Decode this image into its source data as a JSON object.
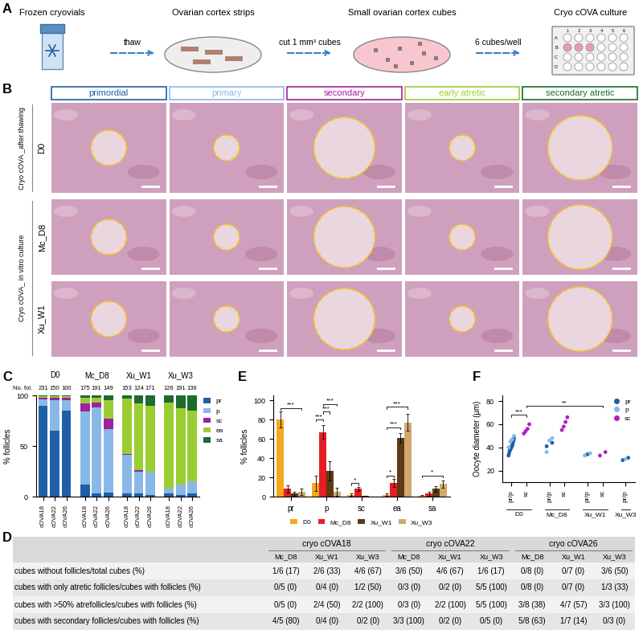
{
  "panel_labels": [
    "A",
    "B",
    "C",
    "D",
    "E",
    "F"
  ],
  "schematic": {
    "steps": [
      "Frozen cryovials",
      "Ovarian cortex strips",
      "Small ovarian cortex cubes",
      "Cryo cOVA culture"
    ],
    "arrows": [
      "thaw",
      "cut 1 mm³ cubes",
      "6 cubes/well"
    ],
    "plate_rows": [
      "A",
      "B",
      "C",
      "D"
    ],
    "plate_columns": [
      "1",
      "2",
      "3",
      "4",
      "5",
      "6"
    ]
  },
  "micrographs": {
    "columns": [
      {
        "name": "primordial",
        "color": "#1f5fa8"
      },
      {
        "name": "primary",
        "color": "#8ab8e6"
      },
      {
        "name": "secondary",
        "color": "#a020a0"
      },
      {
        "name": "early atretic",
        "color": "#9acd32"
      },
      {
        "name": "secondary atretic",
        "color": "#1e6b2e"
      }
    ],
    "groups": [
      {
        "label": "Cryo cOVA _after thawing",
        "rows": [
          "D0"
        ]
      },
      {
        "label": "Cryo cOVA_ in vitro culture",
        "rows": [
          "Mc_D8",
          "Xu_W1"
        ]
      }
    ]
  },
  "chart_data": [
    {
      "type": "bar",
      "panel": "C",
      "stacked": true,
      "y_label": "% follicles",
      "ylim": [
        0,
        100
      ],
      "yticks": [
        0,
        50,
        100
      ],
      "legend": "upper left",
      "count_label": "No. fol.",
      "series": [
        {
          "name": "pr",
          "color": "#1f5fa8"
        },
        {
          "name": "p",
          "color": "#8ab8e6"
        },
        {
          "name": "sc",
          "color": "#a020a0"
        },
        {
          "name": "ea",
          "color": "#9acd32"
        },
        {
          "name": "sa",
          "color": "#1e6b2e"
        }
      ],
      "groups": [
        {
          "name": "D0",
          "bars": [
            {
              "name": "cOVA18",
              "count": 231,
              "values": [
                90,
                6,
                2,
                1,
                1
              ]
            },
            {
              "name": "cOVA22",
              "count": 150,
              "values": [
                65,
                30,
                3,
                1,
                1
              ]
            },
            {
              "name": "cOVA26",
              "count": 100,
              "values": [
                85,
                10,
                3,
                1,
                1
              ]
            }
          ]
        },
        {
          "name": "Mc_D8",
          "bars": [
            {
              "name": "cOVA18",
              "count": 175,
              "values": [
                12,
                72,
                8,
                6,
                2
              ]
            },
            {
              "name": "cOVA22",
              "count": 191,
              "values": [
                3,
                85,
                5,
                5,
                2
              ]
            },
            {
              "name": "cOVA26",
              "count": 149,
              "values": [
                4,
                63,
                10,
                18,
                5
              ]
            }
          ]
        },
        {
          "name": "Xu_W1",
          "bars": [
            {
              "name": "cOVA18",
              "count": 153,
              "values": [
                3,
                38,
                1,
                55,
                3
              ]
            },
            {
              "name": "cOVA22",
              "count": 124,
              "values": [
                3,
                22,
                1,
                66,
                8
              ]
            },
            {
              "name": "cOVA26",
              "count": 171,
              "values": [
                2,
                23,
                0,
                65,
                10
              ]
            }
          ]
        },
        {
          "name": "Xu_W3",
          "bars": [
            {
              "name": "cOVA18",
              "count": 126,
              "values": [
                3,
                5,
                0,
                85,
                7
              ]
            },
            {
              "name": "cOVA22",
              "count": 191,
              "values": [
                2,
                10,
                0,
                75,
                13
              ]
            },
            {
              "name": "cOVA26",
              "count": 136,
              "values": [
                3,
                12,
                0,
                70,
                15
              ]
            }
          ]
        }
      ]
    },
    {
      "type": "bar",
      "panel": "E",
      "y_label": "% follicles",
      "categories": [
        "pr",
        "p",
        "sc",
        "ea",
        "sa"
      ],
      "ylim": [
        0,
        105
      ],
      "yticks": [
        0,
        20,
        40,
        60,
        80,
        100
      ],
      "legend": "upper center",
      "series": [
        {
          "name": "D0",
          "color": "#f5a81c",
          "values": [
            80,
            14,
            2,
            2,
            1
          ],
          "errors": [
            8,
            8,
            1,
            1,
            1
          ]
        },
        {
          "name": "Mc_D8",
          "color": "#e41e26",
          "values": [
            8,
            67,
            8,
            14,
            3
          ],
          "errors": [
            4,
            7,
            2,
            4,
            2
          ]
        },
        {
          "name": "Xu_W1",
          "color": "#5c3a12",
          "values": [
            3,
            27,
            0.5,
            61,
            8
          ],
          "errors": [
            2,
            10,
            0.5,
            5,
            3
          ]
        },
        {
          "name": "Xu_W3",
          "color": "#d2a86e",
          "values": [
            5,
            5,
            0,
            77,
            13
          ],
          "errors": [
            3,
            4,
            0,
            9,
            4
          ]
        }
      ],
      "significance": [
        {
          "category": "pr",
          "from": "D0",
          "to": "Xu_W3",
          "text": "***",
          "y": 92
        },
        {
          "category": "p",
          "from": "D0",
          "to": "Mc_D8",
          "text": "***",
          "y": 80
        },
        {
          "category": "p",
          "from": "Mc_D8",
          "to": "Xu_W1",
          "text": "***",
          "y": 88
        },
        {
          "category": "p",
          "from": "Mc_D8",
          "to": "Xu_W3",
          "text": "***",
          "y": 96
        },
        {
          "category": "sc",
          "from": "D0",
          "to": "Mc_D8",
          "text": "*",
          "y": 14
        },
        {
          "category": "ea",
          "from": "D0",
          "to": "Mc_D8",
          "text": "*",
          "y": 22
        },
        {
          "category": "ea",
          "from": "D0",
          "to": "Xu_W1",
          "text": "***",
          "y": 72
        },
        {
          "category": "ea",
          "from": "D0",
          "to": "Xu_W3",
          "text": "***",
          "y": 93
        },
        {
          "category": "sa",
          "from": "D0",
          "to": "Xu_W3",
          "text": "*",
          "y": 22
        }
      ]
    },
    {
      "type": "scatter",
      "panel": "F",
      "y_label": "Oocyte diameter (μm)",
      "ylim": [
        10,
        85
      ],
      "yticks": [
        20,
        40,
        60,
        80
      ],
      "legend": "upper right",
      "marker": "o",
      "series": [
        {
          "name": "pr",
          "color": "#1f5fa8"
        },
        {
          "name": "p",
          "color": "#8ab8e6"
        },
        {
          "name": "sc",
          "color": "#b020c0"
        }
      ],
      "groups": [
        {
          "name": "D0",
          "categories": [
            {
              "name": "pr/p",
              "pr": [
                33,
                35,
                37,
                38,
                39,
                40,
                41,
                42,
                44,
                46,
                48
              ],
              "p": [
                40,
                45,
                47,
                50
              ]
            },
            {
              "name": "sc",
              "sc": [
                52,
                54,
                56,
                60
              ]
            }
          ]
        },
        {
          "name": "Mc_D8",
          "categories": [
            {
              "name": "pr/p",
              "pr": [
                41,
                44
              ],
              "p": [
                36,
                46,
                48
              ]
            },
            {
              "name": "sc",
              "sc": [
                55,
                58,
                62,
                66
              ]
            }
          ]
        },
        {
          "name": "Xu_W1",
          "categories": [
            {
              "name": "pr/p",
              "pr": [
                34
              ],
              "p": [
                33,
                35
              ]
            },
            {
              "name": "sc",
              "sc": [
                33,
                36
              ]
            }
          ]
        },
        {
          "name": "Xu_W3",
          "categories": [
            {
              "name": "pr/p",
              "pr": [
                29,
                31
              ],
              "p": [
                30
              ]
            }
          ]
        }
      ],
      "significance": [
        {
          "from": {
            "group": "D0",
            "category": "pr/p"
          },
          "to": {
            "group": "D0",
            "category": "sc"
          },
          "text": "***",
          "y": 68
        },
        {
          "from": {
            "group": "D0",
            "category": "sc"
          },
          "to": {
            "group": "Xu_W1",
            "category": "sc"
          },
          "text": "**",
          "y": 76
        }
      ]
    }
  ],
  "table": {
    "groups": [
      "cryo cOVA18",
      "cryo cOVA22",
      "cryo cOVA26"
    ],
    "subcolumns": [
      "Mc_D8",
      "Xu_W1",
      "Xu_W3"
    ],
    "rows": [
      {
        "label": "cubes without follicles/total cubes (%)",
        "cells": [
          "1/6 (17)",
          "2/6 (33)",
          "4/6 (67)",
          "3/6 (50)",
          "4/6 (67)",
          "1/6 (17)",
          "0/8 (0)",
          "0/7 (0)",
          "3/6 (50)"
        ]
      },
      {
        "label": "cubes with only atretic follicles/cubes with follicles (%)",
        "cells": [
          "0/5 (0)",
          "0/4 (0)",
          "1/2 (50)",
          "0/3 (0)",
          "0/2 (0)",
          "5/5 (100)",
          "0/8 (0)",
          "0/7 (0)",
          "1/3 (33)"
        ]
      },
      {
        "label": "cubes with >50% atrefollicles/cubes with follicles (%)",
        "cells": [
          "0/5 (0)",
          "2/4 (50)",
          "2/2 (100)",
          "0/3 (0)",
          "2/2 (100)",
          "5/5 (100)",
          "3/8 (38)",
          "4/7 (57)",
          "3/3 (100)"
        ]
      },
      {
        "label": "cubes with secondary follicles/cubes with follicles (%)",
        "cells": [
          "4/5 (80)",
          "0/4 (0)",
          "0/2 (0)",
          "3/3 (100)",
          "0/2 (0)",
          "0/5 (0)",
          "5/8 (63)",
          "1/7 (14)",
          "0/3 (0)"
        ]
      }
    ]
  }
}
